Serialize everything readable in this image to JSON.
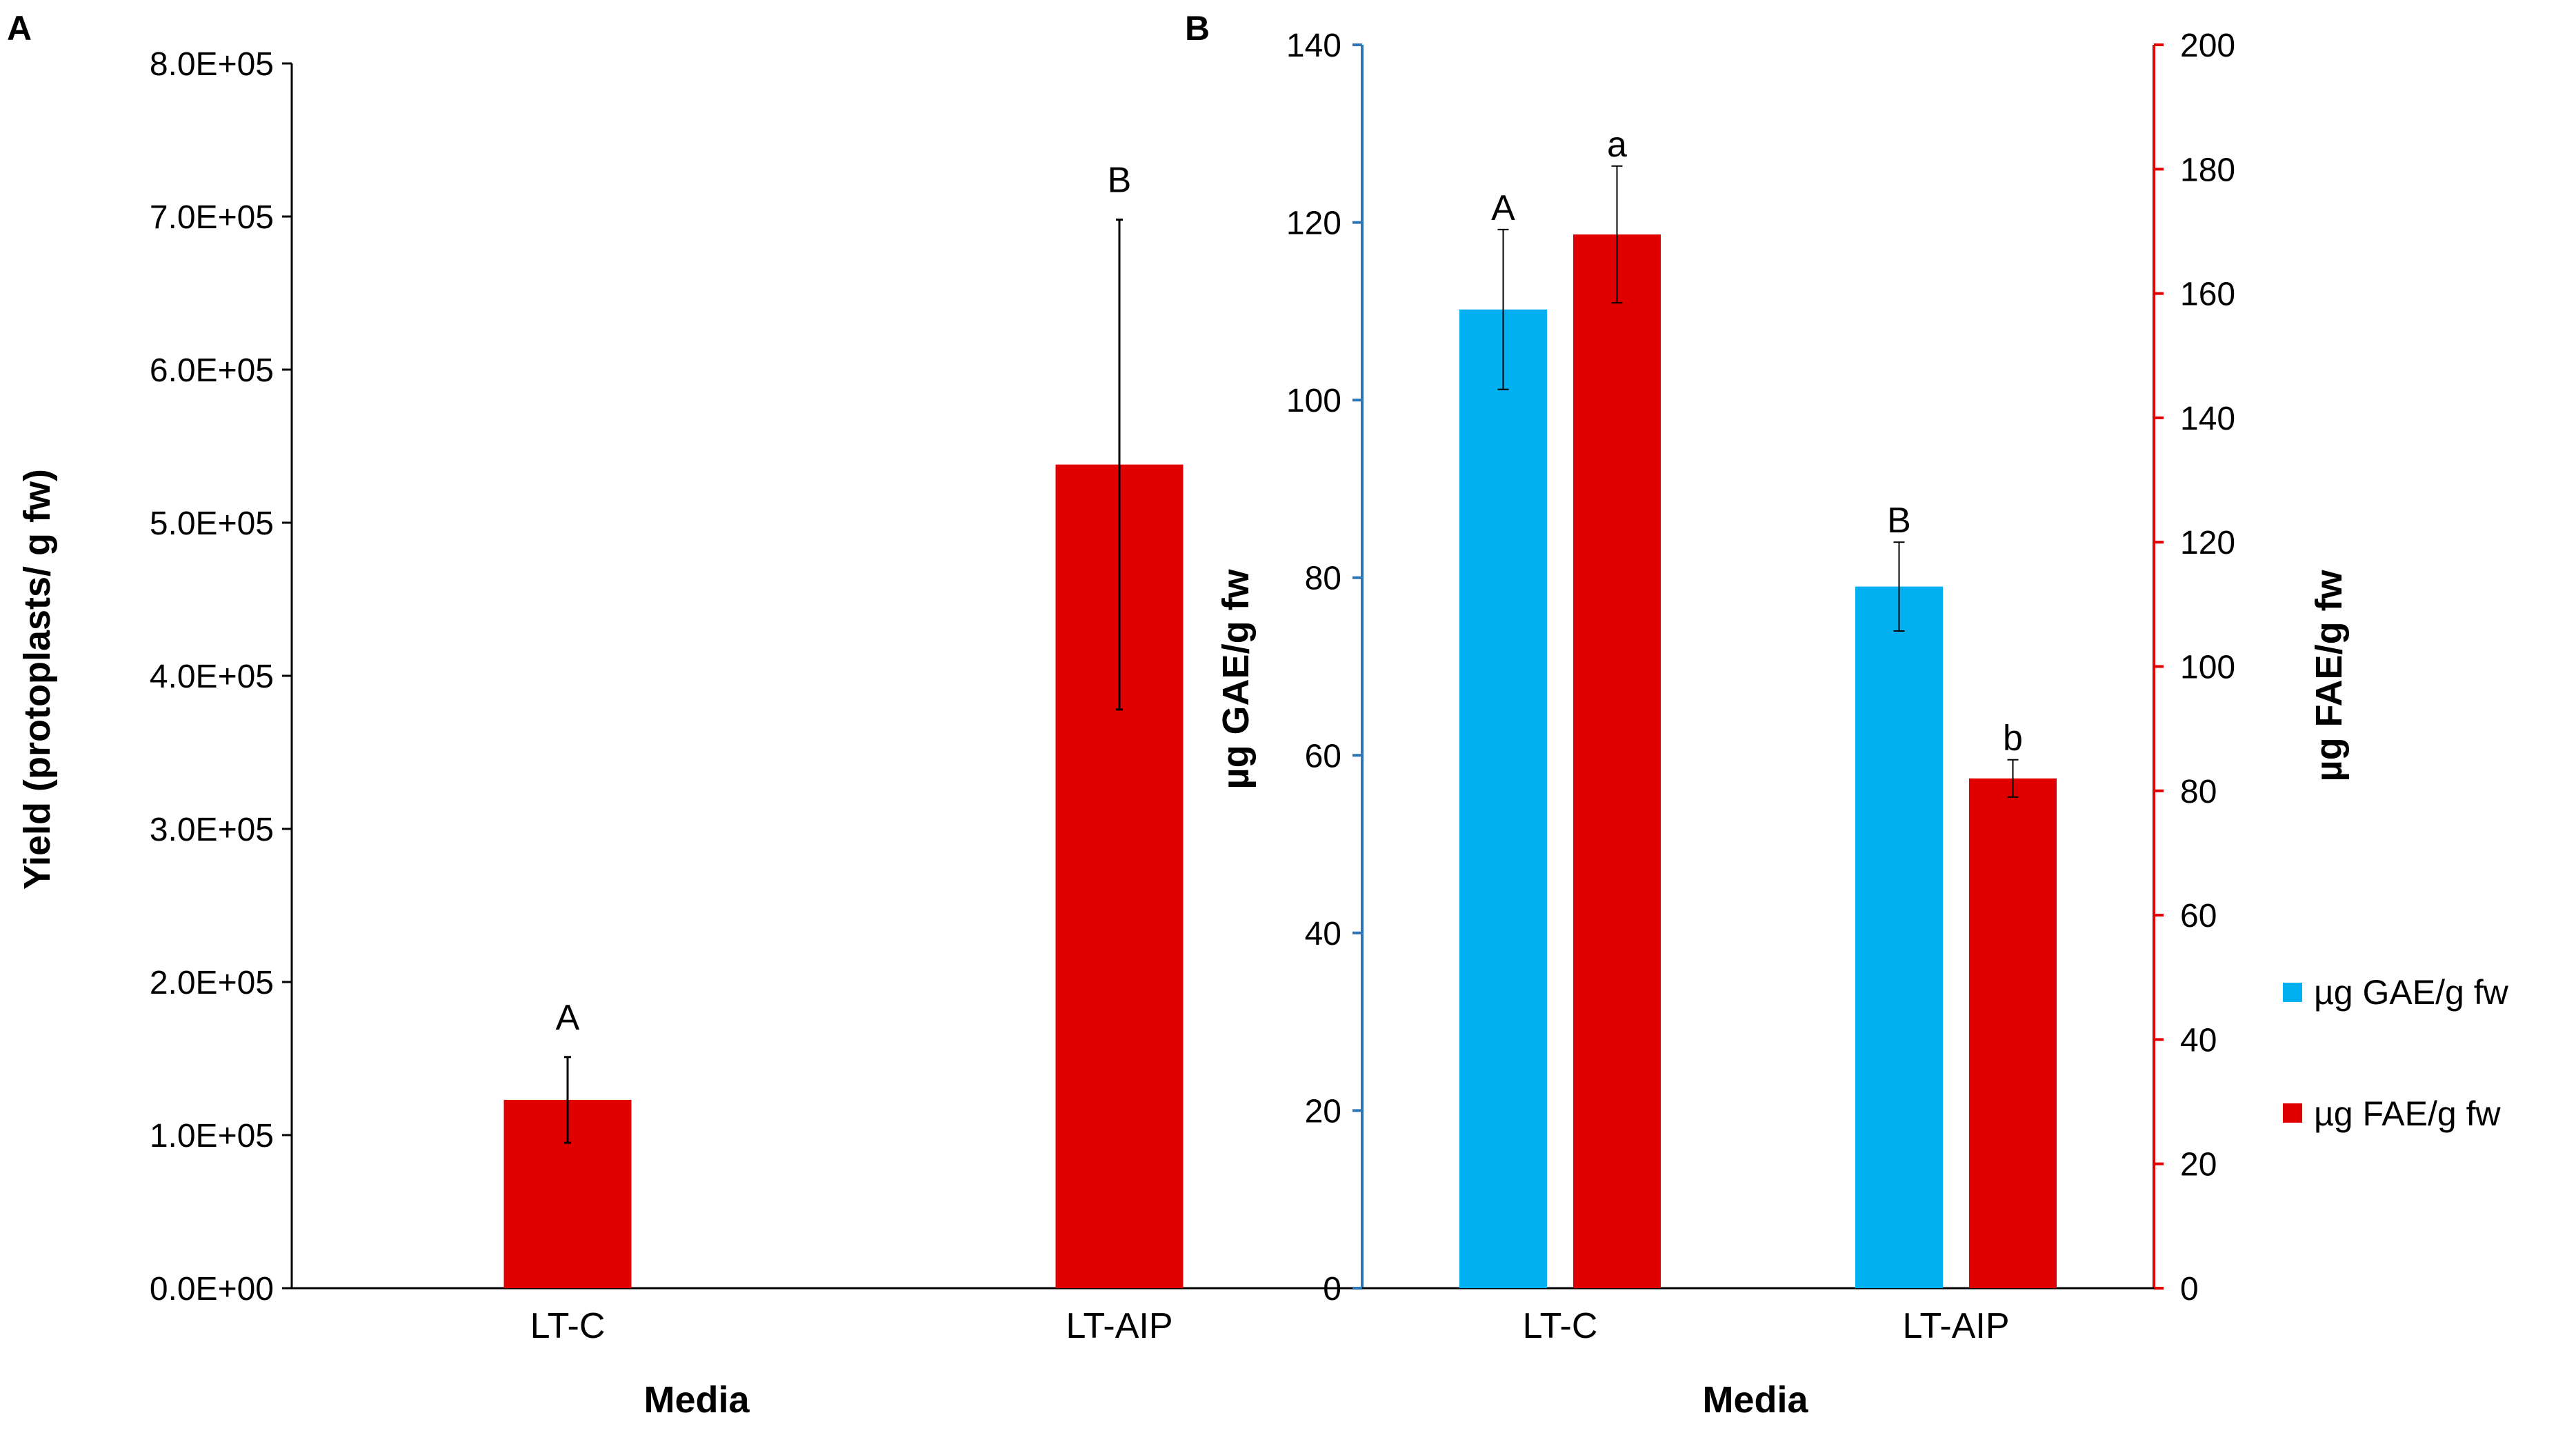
{
  "figure": {
    "panel_a_label": "A",
    "panel_b_label": "B"
  },
  "chart_data": [
    {
      "panel": "A",
      "type": "bar",
      "categories": [
        "LT-C",
        "LT-AIP"
      ],
      "series": [
        {
          "name": "Yield",
          "color": "#e00000",
          "values": [
            123000,
            538000
          ],
          "errors": [
            28000,
            160000
          ],
          "letters": [
            "A",
            "B"
          ]
        }
      ],
      "xlabel": "Media",
      "ylabel": "Yield (protoplasts/ g fw)",
      "ylim": [
        0,
        800000
      ],
      "yticks": [
        "0.0E+00",
        "1.0E+05",
        "2.0E+05",
        "3.0E+05",
        "4.0E+05",
        "5.0E+05",
        "6.0E+05",
        "7.0E+05",
        "8.0E+05"
      ],
      "ytick_values": [
        0,
        100000,
        200000,
        300000,
        400000,
        500000,
        600000,
        700000,
        800000
      ],
      "grid": false
    },
    {
      "panel": "B",
      "type": "bar",
      "categories": [
        "LT-C",
        "LT-AIP"
      ],
      "series": [
        {
          "name": "µg GAE/g fw",
          "axis": "left",
          "color": "#00b0f0",
          "values": [
            110.2,
            79
          ],
          "errors": [
            9,
            5
          ],
          "letters": [
            "A",
            "B"
          ]
        },
        {
          "name": "µg FAE/g fw",
          "axis": "right",
          "color": "#e00000",
          "values": [
            169.5,
            82
          ],
          "errors": [
            11,
            3
          ],
          "letters": [
            "a",
            "b"
          ]
        }
      ],
      "xlabel": "Media",
      "ylabel_left": "µg GAE/g fw",
      "ylabel_right": "µg FAE/g fw",
      "ylim_left": [
        0,
        140
      ],
      "ylim_right": [
        0,
        200
      ],
      "yticks_left": [
        "0",
        "20",
        "40",
        "60",
        "80",
        "100",
        "120",
        "140"
      ],
      "yticks_right": [
        "0",
        "20",
        "40",
        "60",
        "80",
        "100",
        "120",
        "140",
        "160",
        "180",
        "200"
      ],
      "left_axis_color": "#2e75b6",
      "right_axis_color": "#e00000",
      "legend_position": "right",
      "grid": false
    }
  ]
}
